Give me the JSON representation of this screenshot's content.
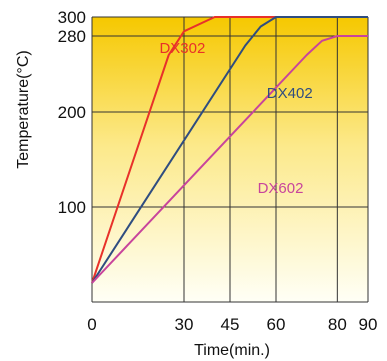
{
  "chart_data": {
    "type": "line",
    "title": "",
    "xlabel": "Time(min.)",
    "ylabel": "Temperature(°C)",
    "xlim": [
      0,
      90
    ],
    "ylim": [
      0,
      300
    ],
    "x_ticks": [
      0,
      30,
      45,
      60,
      80,
      90
    ],
    "y_ticks": [
      100,
      200,
      280,
      300
    ],
    "grid": true,
    "legend": "inline labels",
    "background": {
      "top": "#F6C800",
      "bottom": "#FFFFF6"
    },
    "series": [
      {
        "name": "DX302",
        "color": "#E8312A",
        "x": [
          0,
          25,
          30,
          40,
          90
        ],
        "y": [
          20,
          260,
          285,
          300,
          300
        ]
      },
      {
        "name": "DX402",
        "color": "#2F4D80",
        "x": [
          0,
          50,
          55,
          60,
          90
        ],
        "y": [
          20,
          270,
          290,
          300,
          300
        ]
      },
      {
        "name": "DX602",
        "color": "#C8449C",
        "x": [
          0,
          70,
          75,
          80,
          90
        ],
        "y": [
          20,
          260,
          275,
          280,
          280
        ]
      }
    ]
  }
}
